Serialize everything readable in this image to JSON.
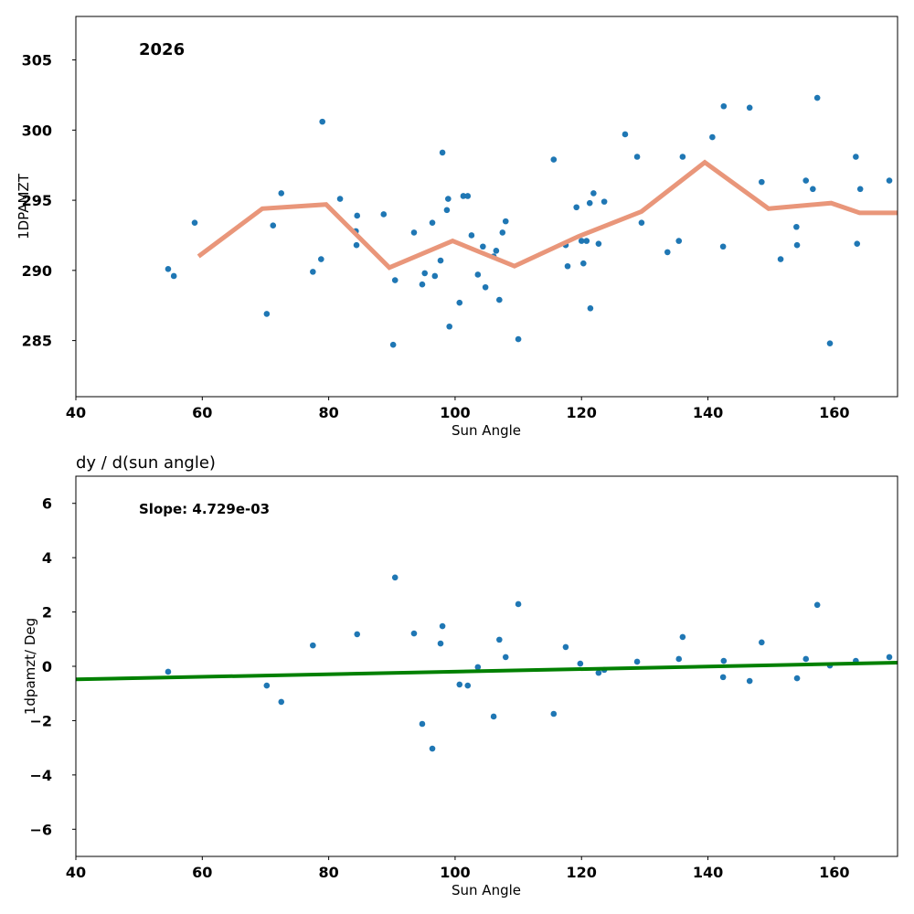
{
  "chart_data": [
    {
      "type": "scatter",
      "title": "",
      "annotation": "2026",
      "xlabel": "Sun Angle",
      "ylabel": "1DPAMZT",
      "xlim": [
        40,
        170
      ],
      "ylim": [
        281.0,
        308.1
      ],
      "xticks": [
        40,
        60,
        80,
        100,
        120,
        140,
        160
      ],
      "yticks": [
        285,
        290,
        295,
        300,
        305
      ],
      "grid": false,
      "series": [
        {
          "name": "data",
          "kind": "scatter",
          "color": "#1f77b4",
          "points": [
            [
              54.6,
              290.1
            ],
            [
              55.5,
              289.6
            ],
            [
              58.8,
              293.4
            ],
            [
              70.2,
              286.9
            ],
            [
              71.2,
              293.2
            ],
            [
              72.5,
              295.5
            ],
            [
              77.5,
              289.9
            ],
            [
              78.8,
              290.8
            ],
            [
              79.0,
              300.6
            ],
            [
              81.8,
              295.1
            ],
            [
              84.3,
              292.8
            ],
            [
              84.4,
              291.8
            ],
            [
              84.5,
              293.9
            ],
            [
              88.7,
              294.0
            ],
            [
              90.2,
              284.7
            ],
            [
              90.5,
              289.3
            ],
            [
              93.5,
              292.7
            ],
            [
              94.8,
              289.0
            ],
            [
              95.2,
              289.8
            ],
            [
              96.4,
              293.4
            ],
            [
              96.8,
              289.6
            ],
            [
              97.7,
              290.7
            ],
            [
              98.0,
              298.4
            ],
            [
              98.7,
              294.3
            ],
            [
              98.9,
              295.1
            ],
            [
              99.1,
              286.0
            ],
            [
              100.7,
              287.7
            ],
            [
              101.3,
              295.3
            ],
            [
              102.0,
              295.3
            ],
            [
              102.6,
              292.5
            ],
            [
              103.6,
              289.7
            ],
            [
              104.4,
              291.7
            ],
            [
              104.8,
              288.8
            ],
            [
              106.1,
              291.0
            ],
            [
              106.5,
              291.4
            ],
            [
              107.0,
              287.9
            ],
            [
              107.5,
              292.7
            ],
            [
              108.0,
              293.5
            ],
            [
              110.0,
              285.1
            ],
            [
              115.6,
              297.9
            ],
            [
              117.5,
              291.8
            ],
            [
              117.8,
              290.3
            ],
            [
              119.2,
              294.5
            ],
            [
              120.0,
              292.1
            ],
            [
              120.3,
              290.5
            ],
            [
              120.8,
              292.1
            ],
            [
              121.3,
              294.8
            ],
            [
              121.4,
              287.3
            ],
            [
              121.9,
              295.5
            ],
            [
              122.7,
              291.9
            ],
            [
              123.6,
              294.9
            ],
            [
              126.9,
              299.7
            ],
            [
              128.8,
              298.1
            ],
            [
              129.5,
              293.4
            ],
            [
              133.6,
              291.3
            ],
            [
              135.4,
              292.1
            ],
            [
              136.0,
              298.1
            ],
            [
              140.7,
              299.5
            ],
            [
              142.4,
              291.7
            ],
            [
              142.5,
              301.7
            ],
            [
              146.6,
              301.6
            ],
            [
              148.5,
              296.3
            ],
            [
              151.5,
              290.8
            ],
            [
              154.0,
              293.1
            ],
            [
              154.1,
              291.8
            ],
            [
              155.5,
              296.4
            ],
            [
              156.6,
              295.8
            ],
            [
              157.3,
              302.3
            ],
            [
              159.3,
              284.8
            ],
            [
              163.4,
              298.1
            ],
            [
              163.6,
              291.9
            ],
            [
              164.1,
              295.8
            ],
            [
              168.7,
              296.4
            ]
          ]
        },
        {
          "name": "binned mean",
          "kind": "line",
          "color": "#e9967a",
          "points": [
            [
              59.4,
              291.0
            ],
            [
              69.5,
              294.4
            ],
            [
              79.6,
              294.7
            ],
            [
              89.6,
              290.2
            ],
            [
              99.6,
              292.1
            ],
            [
              109.4,
              290.3
            ],
            [
              119.4,
              292.4
            ],
            [
              129.5,
              294.2
            ],
            [
              139.5,
              297.7
            ],
            [
              149.6,
              294.4
            ],
            [
              159.5,
              294.8
            ],
            [
              164.0,
              294.1
            ],
            [
              170.0,
              294.1
            ]
          ]
        }
      ]
    },
    {
      "type": "scatter",
      "title": "dy / d(sun angle)",
      "annotation": "Slope: 4.729e-03",
      "xlabel": "Sun Angle",
      "ylabel": "1dpamzt/ Deg",
      "xlim": [
        40,
        170
      ],
      "ylim": [
        -7,
        7
      ],
      "xticks": [
        40,
        60,
        80,
        100,
        120,
        140,
        160
      ],
      "yticks": [
        -6,
        -4,
        -2,
        0,
        2,
        4,
        6
      ],
      "ytick_labels": [
        "−6",
        "−4",
        "−2",
        "0",
        "2",
        "4",
        "6"
      ],
      "grid": false,
      "series": [
        {
          "name": "derivative",
          "kind": "scatter",
          "color": "#1f77b4",
          "points": [
            [
              54.6,
              -0.2
            ],
            [
              70.2,
              -0.71
            ],
            [
              72.5,
              -1.31
            ],
            [
              77.5,
              0.77
            ],
            [
              84.5,
              1.18
            ],
            [
              90.5,
              3.27
            ],
            [
              93.5,
              1.21
            ],
            [
              94.8,
              -2.12
            ],
            [
              96.4,
              -3.03
            ],
            [
              97.7,
              0.84
            ],
            [
              98.0,
              1.48
            ],
            [
              100.7,
              -0.67
            ],
            [
              102.0,
              -0.71
            ],
            [
              103.6,
              -0.03
            ],
            [
              106.1,
              -1.85
            ],
            [
              107.0,
              0.98
            ],
            [
              108.0,
              0.34
            ],
            [
              110.0,
              2.29
            ],
            [
              115.6,
              -1.75
            ],
            [
              117.5,
              0.71
            ],
            [
              119.8,
              0.1
            ],
            [
              122.7,
              -0.24
            ],
            [
              123.6,
              -0.13
            ],
            [
              128.8,
              0.17
            ],
            [
              135.4,
              0.27
            ],
            [
              136.0,
              1.08
            ],
            [
              142.4,
              -0.4
            ],
            [
              142.5,
              0.2
            ],
            [
              146.6,
              -0.54
            ],
            [
              148.5,
              0.88
            ],
            [
              154.1,
              -0.44
            ],
            [
              155.5,
              0.27
            ],
            [
              157.3,
              2.26
            ],
            [
              159.3,
              0.03
            ],
            [
              163.4,
              0.2
            ],
            [
              168.7,
              0.34
            ]
          ]
        },
        {
          "name": "linear fit",
          "kind": "line",
          "color": "#008000",
          "points": [
            [
              40,
              -0.48
            ],
            [
              170,
              0.135
            ]
          ]
        }
      ]
    }
  ]
}
